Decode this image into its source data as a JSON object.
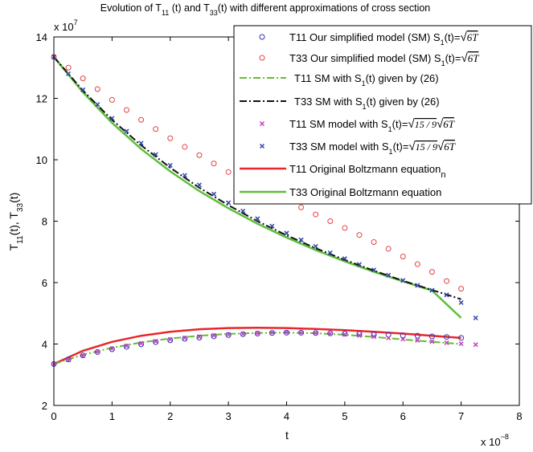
{
  "chart_data": {
    "type": "line",
    "title_parts": [
      "Evolution of T",
      "11",
      " (t) and T",
      "33",
      "(t) with different approximations of cross section"
    ],
    "xlabel": "t",
    "ylabel_parts": [
      "T",
      "11",
      "(t), T",
      "33",
      "(t)"
    ],
    "x_multiplier_parts": [
      "x 10",
      "−8"
    ],
    "y_multiplier_parts": [
      "x 10",
      "7"
    ],
    "xlim": [
      0,
      8
    ],
    "ylim": [
      2,
      14
    ],
    "x_ticks": [
      "0",
      "1",
      "2",
      "3",
      "4",
      "5",
      "6",
      "7",
      "8"
    ],
    "y_ticks": [
      "2",
      "4",
      "6",
      "8",
      "10",
      "12",
      "14"
    ],
    "x_tick_values": [
      0,
      1,
      2,
      3,
      4,
      5,
      6,
      7,
      8
    ],
    "y_tick_values": [
      2,
      4,
      6,
      8,
      10,
      12,
      14
    ],
    "legend_position": "top-right",
    "colors": {
      "blue": "#3333bb",
      "red_marker": "#e64040",
      "green_dash": "#66bb33",
      "black_dash": "#111111",
      "magenta": "#c040c0",
      "navy": "#3344aa",
      "red_line": "#e8262b",
      "green_line": "#5cbf3a"
    },
    "series": [
      {
        "name": "T11 Our simplified model (SM) S1(t)=√6T",
        "legend_parts": [
          "T11 Our simplified model (SM) S",
          "1",
          "(t)=",
          "√",
          "6T"
        ],
        "style": "circle",
        "color": "#3333bb",
        "x": [
          0,
          0.25,
          0.5,
          0.75,
          1,
          1.25,
          1.5,
          1.75,
          2,
          2.25,
          2.5,
          2.75,
          3,
          3.25,
          3.5,
          3.75,
          4,
          4.25,
          4.5,
          4.75,
          5,
          5.25,
          5.5,
          5.75,
          6,
          6.25,
          6.5,
          6.75,
          7
        ],
        "y": [
          3.35,
          3.5,
          3.63,
          3.74,
          3.83,
          3.91,
          3.99,
          4.06,
          4.12,
          4.17,
          4.21,
          4.25,
          4.29,
          4.32,
          4.34,
          4.36,
          4.37,
          4.37,
          4.36,
          4.35,
          4.34,
          4.33,
          4.31,
          4.3,
          4.28,
          4.27,
          4.25,
          4.23,
          4.2
        ]
      },
      {
        "name": "T33 Our simplified model (SM) S1(t)=√6T",
        "legend_parts": [
          "T33 Our simplified model (SM) S",
          "1",
          "(t)=",
          "√",
          "6T"
        ],
        "style": "circle",
        "color": "#e64040",
        "x": [
          0,
          0.25,
          0.5,
          0.75,
          1,
          1.25,
          1.5,
          1.75,
          2,
          2.25,
          2.5,
          2.75,
          3,
          3.25,
          3.5,
          3.75,
          4,
          4.25,
          4.5,
          4.75,
          5,
          5.25,
          5.5,
          5.75,
          6,
          6.25,
          6.5,
          6.75,
          7
        ],
        "y": [
          13.35,
          13.0,
          12.65,
          12.3,
          11.95,
          11.62,
          11.3,
          11.0,
          10.7,
          10.42,
          10.15,
          9.88,
          9.6,
          9.35,
          9.12,
          8.9,
          8.67,
          8.45,
          8.22,
          8.0,
          7.78,
          7.55,
          7.32,
          7.1,
          6.85,
          6.6,
          6.35,
          6.05,
          5.8
        ]
      },
      {
        "name": "T11 SM with S1(t) given by (26)",
        "legend_parts": [
          "T11 SM with S",
          "1",
          "(t) given by (26)"
        ],
        "style": "dashdot",
        "color": "#66bb33",
        "x": [
          0,
          0.5,
          1,
          1.5,
          2,
          2.5,
          3,
          3.5,
          4,
          4.5,
          5,
          5.5,
          6,
          6.5,
          7
        ],
        "y": [
          3.35,
          3.65,
          3.88,
          4.05,
          4.18,
          4.27,
          4.33,
          4.36,
          4.37,
          4.35,
          4.3,
          4.23,
          4.15,
          4.07,
          4.0
        ]
      },
      {
        "name": "T33 SM with S1(t) given by (26)",
        "legend_parts": [
          "T33 SM with S",
          "1",
          "(t) given by (26)"
        ],
        "style": "dashdot",
        "color": "#111111",
        "x": [
          0,
          0.5,
          1,
          1.5,
          2,
          2.5,
          3,
          3.5,
          4,
          4.5,
          5,
          5.5,
          6,
          6.5,
          7
        ],
        "y": [
          13.35,
          12.25,
          11.3,
          10.47,
          9.74,
          9.09,
          8.52,
          8.0,
          7.54,
          7.12,
          6.74,
          6.39,
          6.06,
          5.76,
          5.46
        ]
      },
      {
        "name": "T11 SM model with S1(t)=√(15/9)√6T",
        "legend_parts": [
          "T11 SM model with S",
          "1",
          "(t)=",
          "√",
          "15 / 9",
          "√",
          "6T"
        ],
        "style": "x",
        "color": "#c040c0",
        "x": [
          0,
          0.25,
          0.5,
          0.75,
          1,
          1.25,
          1.5,
          1.75,
          2,
          2.25,
          2.5,
          2.75,
          3,
          3.25,
          3.5,
          3.75,
          4,
          4.25,
          4.5,
          4.75,
          5,
          5.25,
          5.5,
          5.75,
          6,
          6.25,
          6.5,
          6.75,
          7,
          7.25
        ],
        "y": [
          3.35,
          3.48,
          3.62,
          3.74,
          3.85,
          3.94,
          4.02,
          4.09,
          4.15,
          4.2,
          4.24,
          4.28,
          4.31,
          4.33,
          4.35,
          4.37,
          4.38,
          4.37,
          4.36,
          4.34,
          4.31,
          4.28,
          4.24,
          4.2,
          4.16,
          4.12,
          4.08,
          4.04,
          4.01,
          3.98
        ]
      },
      {
        "name": "T33 SM model with S1(t)=√(15/9)√6T",
        "legend_parts": [
          "T33 SM model with S",
          "1",
          "(t)=",
          "√",
          "15 / 9",
          "√",
          "6T"
        ],
        "style": "x",
        "color": "#3344aa",
        "x": [
          0,
          0.25,
          0.5,
          0.75,
          1,
          1.25,
          1.5,
          1.75,
          2,
          2.25,
          2.5,
          2.75,
          3,
          3.25,
          3.5,
          3.75,
          4,
          4.25,
          4.5,
          4.75,
          5,
          5.25,
          5.5,
          5.75,
          6,
          6.25,
          6.5,
          6.75,
          7,
          7.25
        ],
        "y": [
          13.35,
          12.8,
          12.28,
          11.8,
          11.35,
          10.93,
          10.54,
          10.17,
          9.82,
          9.49,
          9.18,
          8.88,
          8.6,
          8.33,
          8.08,
          7.84,
          7.61,
          7.39,
          7.18,
          6.97,
          6.78,
          6.59,
          6.41,
          6.24,
          6.07,
          5.91,
          5.75,
          5.6,
          5.35,
          4.85
        ]
      },
      {
        "name": "T11 Original Boltzmann equation",
        "legend_parts": [
          "T11 Original Boltzmann equation",
          "n"
        ],
        "style": "line",
        "color": "#e8262b",
        "x": [
          0,
          0.5,
          1,
          1.5,
          2,
          2.5,
          3,
          3.5,
          4,
          4.5,
          5,
          5.5,
          6,
          6.5,
          7
        ],
        "y": [
          3.35,
          3.78,
          4.07,
          4.27,
          4.4,
          4.48,
          4.52,
          4.53,
          4.52,
          4.49,
          4.45,
          4.4,
          4.34,
          4.27,
          4.2
        ]
      },
      {
        "name": "T33 Original Boltzmann equation",
        "legend_parts": [
          "T33 Original Boltzmann equation"
        ],
        "style": "line",
        "color": "#5cbf3a",
        "x": [
          0,
          0.5,
          1,
          1.5,
          2,
          2.5,
          3,
          3.5,
          4,
          4.5,
          5,
          5.5,
          6,
          6.5,
          7
        ],
        "y": [
          13.35,
          12.2,
          11.2,
          10.35,
          9.62,
          8.98,
          8.42,
          7.92,
          7.47,
          7.06,
          6.69,
          6.35,
          6.04,
          5.74,
          4.85
        ]
      }
    ]
  }
}
